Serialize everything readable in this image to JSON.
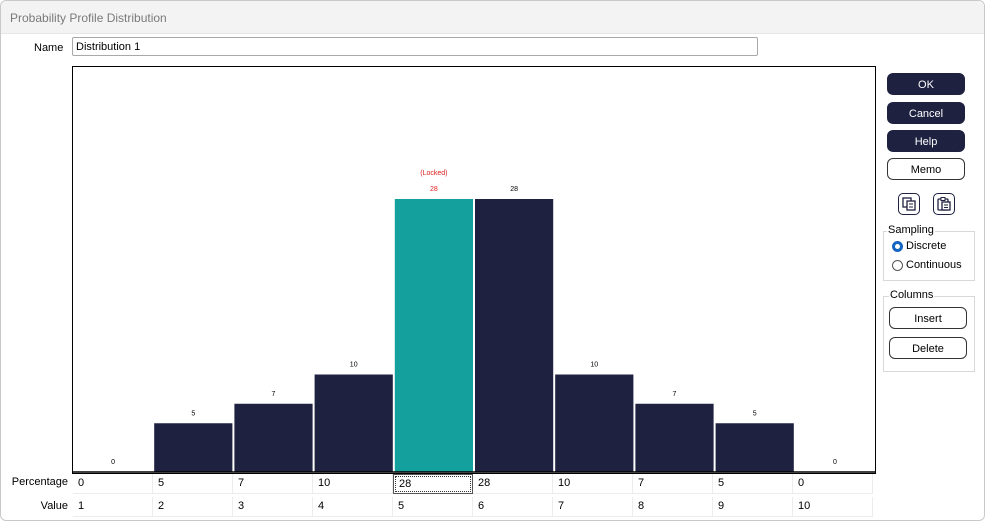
{
  "window": {
    "title": "Probability Profile Distribution"
  },
  "name_field": {
    "label": "Name",
    "value": "Distribution 1"
  },
  "buttons": {
    "ok": "OK",
    "cancel": "Cancel",
    "help": "Help",
    "memo": "Memo",
    "insert": "Insert",
    "delete": "Delete"
  },
  "sampling": {
    "title": "Sampling",
    "options": [
      "Discrete",
      "Continuous"
    ],
    "selected": "Discrete"
  },
  "columns_group": {
    "title": "Columns"
  },
  "grid": {
    "percentage_label": "Percentage",
    "value_label": "Value",
    "percentages": [
      "0",
      "5",
      "7",
      "10",
      "28",
      "28",
      "10",
      "7",
      "5",
      "0"
    ],
    "values": [
      "1",
      "2",
      "3",
      "4",
      "5",
      "6",
      "7",
      "8",
      "9",
      "10"
    ],
    "selected_index": 4
  },
  "colors": {
    "bar": "#1e2140",
    "locked_bar": "#14a09c",
    "locked_text": "#e02020",
    "button_dark": "#1e2140"
  },
  "icons": [
    "copy-icon",
    "paste-icon"
  ],
  "chart_data": {
    "type": "bar",
    "categories": [
      "1",
      "2",
      "3",
      "4",
      "5",
      "6",
      "7",
      "8",
      "9",
      "10"
    ],
    "values": [
      0,
      5,
      7,
      10,
      28,
      28,
      10,
      7,
      5,
      0
    ],
    "data_labels": [
      "0",
      "5",
      "7",
      "10",
      "28",
      "28",
      "10",
      "7",
      "5",
      "0"
    ],
    "locked_index": 4,
    "locked_annotation": "(Locked)",
    "ylim": [
      0,
      28
    ],
    "grid": false
  }
}
